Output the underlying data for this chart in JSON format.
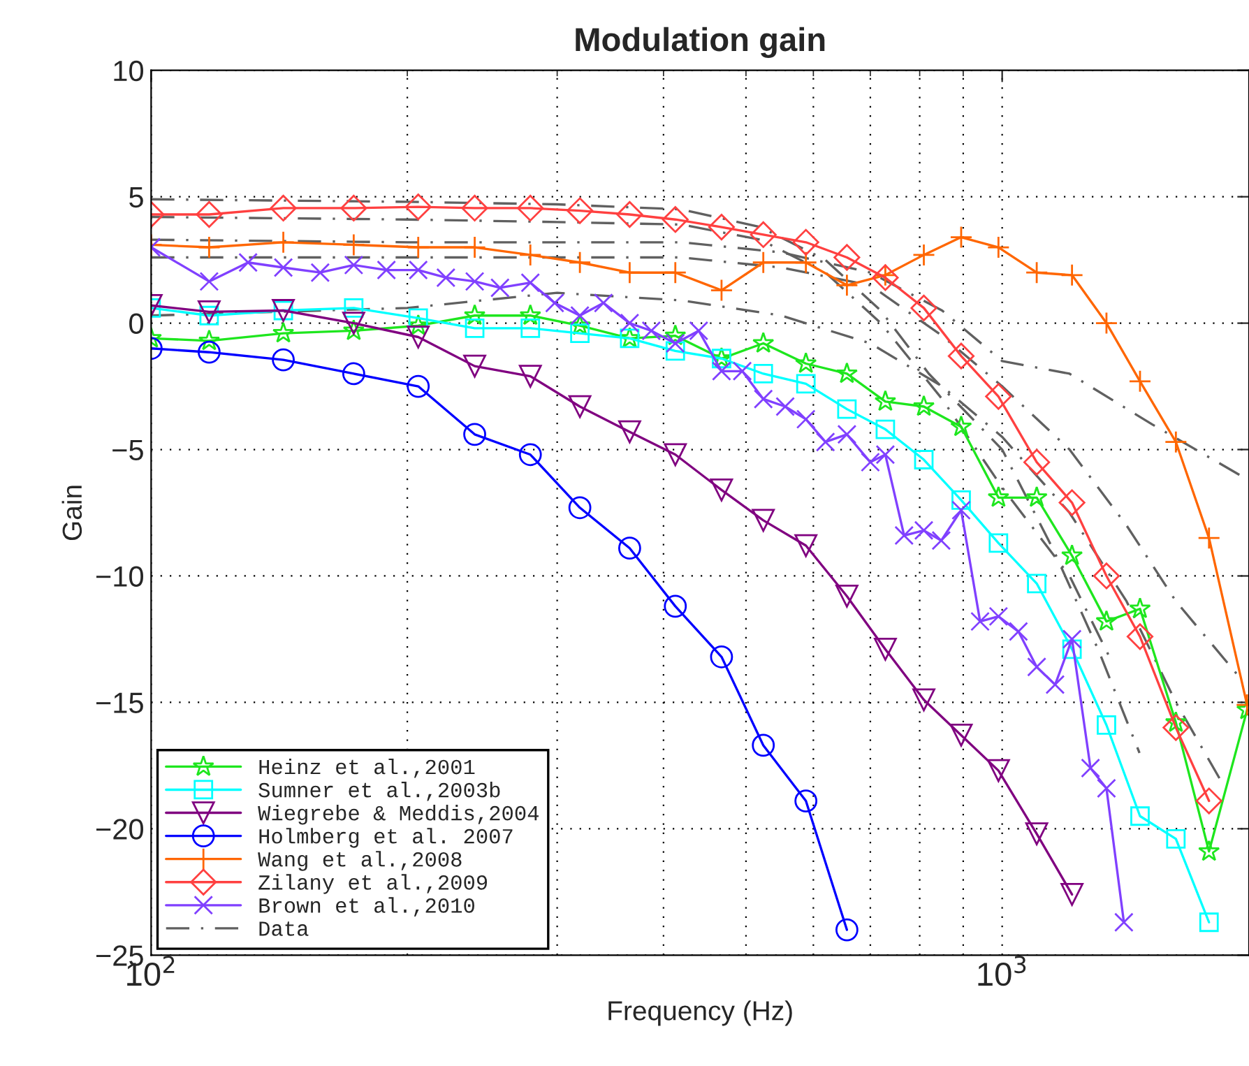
{
  "chart_data": {
    "type": "line",
    "title": "Modulation gain",
    "xlabel": "Frequency (Hz)",
    "ylabel": "Gain",
    "log": "x",
    "xlim": [
      100,
      1950
    ],
    "xticks": [
      {
        "value": 100,
        "label": "10$^{2}$"
      },
      {
        "value": 1000,
        "label": "10$^{3}$"
      }
    ],
    "ylim": [
      -25,
      10
    ],
    "yticks": [
      {
        "value": -25,
        "label": "−25"
      },
      {
        "value": -20,
        "label": "−20"
      },
      {
        "value": -15,
        "label": "−15"
      },
      {
        "value": -10,
        "label": "−10"
      },
      {
        "value": -5,
        "label": "−5"
      },
      0,
      5,
      10
    ],
    "grid": true,
    "legend": "bottom left",
    "series": [
      {
        "name": "Heinz et al.,2001",
        "color": "#1ee61e",
        "marker": "star",
        "line_style": "solid",
        "x": [
          100,
          117,
          143,
          173,
          206,
          240,
          279,
          319,
          365,
          413,
          468,
          524,
          588,
          657,
          729,
          809,
          895,
          990,
          1098,
          1208,
          1326,
          1452,
          1600,
          1750,
          1940
        ],
        "values": [
          -0.6,
          -0.7,
          -0.4,
          -0.3,
          -0.1,
          0.3,
          0.3,
          -0.1,
          -0.6,
          -0.5,
          -1.4,
          -0.8,
          -1.6,
          -2.0,
          -3.1,
          -3.3,
          -4.1,
          -6.9,
          -6.9,
          -9.2,
          -11.8,
          -11.3,
          -15.8,
          -20.9,
          -15.3
        ]
      },
      {
        "name": "Sumner et al.,2003b",
        "color": "#00ffff",
        "marker": "square",
        "line_style": "solid",
        "x": [
          100,
          117,
          143,
          173,
          206,
          240,
          279,
          319,
          365,
          413,
          468,
          524,
          588,
          657,
          729,
          809,
          895,
          990,
          1098,
          1208,
          1326,
          1452,
          1600,
          1750
        ],
        "values": [
          0.6,
          0.3,
          0.5,
          0.6,
          0.2,
          -0.2,
          -0.2,
          -0.4,
          -0.6,
          -1.1,
          -1.4,
          -2.0,
          -2.4,
          -3.4,
          -4.2,
          -5.4,
          -7.0,
          -8.7,
          -10.3,
          -12.9,
          -15.9,
          -19.5,
          -20.4,
          -23.7
        ]
      },
      {
        "name": "Wiegrebe & Meddis,2004",
        "color": "#800080",
        "marker": "triangle",
        "line_style": "solid",
        "x": [
          100,
          117,
          143,
          173,
          206,
          240,
          279,
          319,
          365,
          413,
          468,
          524,
          588,
          657,
          729,
          809,
          895,
          990,
          1098,
          1208
        ],
        "values": [
          0.7,
          0.45,
          0.5,
          0.0,
          -0.55,
          -1.7,
          -2.1,
          -3.3,
          -4.3,
          -5.2,
          -6.6,
          -7.8,
          -8.8,
          -10.8,
          -12.9,
          -14.9,
          -16.3,
          -17.7,
          -20.2,
          -22.6
        ]
      },
      {
        "name": "Holmberg et al. 2007",
        "color": "#0000ff",
        "marker": "circle",
        "line_style": "solid",
        "x": [
          100,
          117,
          143,
          173,
          206,
          240,
          279,
          319,
          365,
          413,
          468,
          524,
          588,
          657
        ],
        "values": [
          -1.0,
          -1.15,
          -1.45,
          -2.0,
          -2.5,
          -4.4,
          -5.2,
          -7.3,
          -8.9,
          -11.2,
          -13.2,
          -16.7,
          -18.9,
          -24.0
        ]
      },
      {
        "name": "Wang et al.,2008",
        "color": "#ff6600",
        "marker": "cross",
        "line_style": "solid",
        "x": [
          100,
          117,
          143,
          173,
          206,
          240,
          279,
          319,
          365,
          413,
          468,
          524,
          588,
          657,
          729,
          809,
          895,
          990,
          1098,
          1208,
          1326,
          1452,
          1600,
          1750,
          1940
        ],
        "values": [
          3.1,
          3.0,
          3.2,
          3.1,
          3.0,
          3.0,
          2.7,
          2.4,
          2.0,
          2.0,
          1.3,
          2.4,
          2.4,
          1.5,
          1.9,
          2.7,
          3.4,
          3.0,
          2.0,
          1.9,
          0.0,
          -2.3,
          -4.7,
          -8.5,
          -15.1
        ]
      },
      {
        "name": "Zilany et al.,2009",
        "color": "#ff4040",
        "marker": "diamond",
        "line_style": "solid",
        "x": [
          100,
          117,
          143,
          173,
          206,
          240,
          279,
          319,
          365,
          413,
          468,
          524,
          588,
          657,
          729,
          809,
          895,
          990,
          1098,
          1208,
          1326,
          1452,
          1600,
          1750
        ],
        "values": [
          4.3,
          4.3,
          4.55,
          4.55,
          4.6,
          4.55,
          4.55,
          4.45,
          4.3,
          4.1,
          3.8,
          3.5,
          3.2,
          2.6,
          1.8,
          0.6,
          -1.3,
          -2.9,
          -5.5,
          -7.1,
          -10.0,
          -12.4,
          -16.0,
          -18.9
        ]
      },
      {
        "name": "Brown et al.,2010",
        "color": "#8040ff",
        "marker": "x",
        "line_style": "solid",
        "x": [
          100,
          117,
          130,
          143,
          158,
          173,
          189,
          206,
          222,
          240,
          257,
          279,
          298,
          319,
          340,
          365,
          387,
          413,
          440,
          468,
          495,
          524,
          556,
          588,
          620,
          657,
          700,
          729,
          767,
          809,
          848,
          895,
          942,
          990,
          1045,
          1098,
          1154,
          1208,
          1270,
          1326,
          1390
        ],
        "values": [
          3.0,
          1.65,
          2.4,
          2.2,
          2.0,
          2.3,
          2.1,
          2.1,
          1.8,
          1.65,
          1.4,
          1.6,
          0.8,
          0.3,
          0.8,
          0.0,
          -0.3,
          -0.8,
          -0.3,
          -1.9,
          -1.9,
          -3.0,
          -3.3,
          -3.8,
          -4.7,
          -4.4,
          -5.5,
          -5.2,
          -8.4,
          -8.2,
          -8.6,
          -7.4,
          -11.8,
          -11.6,
          -12.2,
          -13.6,
          -14.3,
          -12.5,
          -17.6,
          -18.4,
          -23.7
        ]
      },
      {
        "name": "Data",
        "color": "#606060",
        "marker": "none",
        "line_style": "dashdot",
        "x": [
          100,
          200,
          300,
          420,
          520,
          620,
          720,
          820,
          1000,
          1150,
          1300,
          1450
        ],
        "values": [
          4.9,
          4.8,
          4.7,
          4.5,
          3.8,
          2.5,
          0.5,
          -2.0,
          -5.0,
          -9.0,
          -13.0,
          -17.0
        ]
      },
      {
        "color": "#606060",
        "marker": "none",
        "line_style": "dashdot",
        "x": [
          100,
          200,
          300,
          420,
          520,
          620,
          720,
          850,
          1000,
          1200,
          1350
        ],
        "values": [
          4.2,
          4.1,
          4.0,
          3.9,
          3.3,
          2.0,
          0.0,
          -3.0,
          -6.5,
          -10.0,
          -13.5
        ]
      },
      {
        "color": "#606060",
        "marker": "none",
        "line_style": "dashdot",
        "x": [
          100,
          200,
          300,
          420,
          550,
          700,
          850,
          1000,
          1200,
          1500,
          1900
        ],
        "values": [
          3.3,
          3.2,
          3.2,
          3.2,
          2.8,
          2.0,
          0.5,
          -1.5,
          -2.0,
          -4.0,
          -6.0
        ]
      },
      {
        "color": "#606060",
        "marker": "none",
        "line_style": "dashdot",
        "x": [
          100,
          200,
          300,
          420,
          550,
          700,
          850,
          1000,
          1200,
          1400,
          1600,
          1900
        ],
        "values": [
          2.6,
          2.6,
          2.6,
          2.6,
          2.2,
          1.5,
          -0.5,
          -2.5,
          -5.0,
          -8.0,
          -11.0,
          -14.0
        ]
      },
      {
        "color": "#606060",
        "marker": "none",
        "line_style": "dashdot",
        "x": [
          100,
          200,
          300,
          420,
          550,
          700,
          850,
          1000,
          1200,
          1400,
          1600,
          1800
        ],
        "values": [
          0.3,
          0.6,
          1.2,
          0.9,
          0.3,
          -0.8,
          -2.5,
          -4.5,
          -7.5,
          -11.0,
          -15.0,
          -18.0
        ]
      }
    ]
  }
}
